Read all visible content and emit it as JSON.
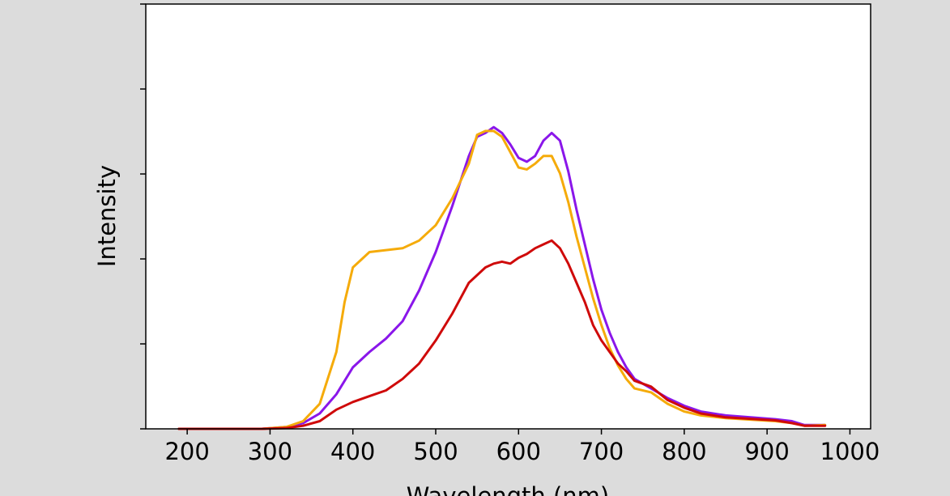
{
  "chart_data": {
    "type": "line",
    "title": "",
    "xlabel": "Wavelength (nm)",
    "ylabel": "Intensity",
    "xlim": [
      150,
      1025
    ],
    "ylim": [
      0,
      1.0
    ],
    "x_ticks": [
      200,
      300,
      400,
      500,
      600,
      700,
      800,
      900,
      1000
    ],
    "x_tick_labels": [
      "200",
      "300",
      "400",
      "500",
      "600",
      "700",
      "800",
      "900",
      "1000"
    ],
    "y_ticks": [
      0,
      0.2,
      0.4,
      0.6,
      0.8,
      1.0
    ],
    "y_tick_labels_shown": false,
    "grid": false,
    "legend": "none",
    "series": [
      {
        "color": "#8a16ea",
        "points": [
          [
            190,
            0
          ],
          [
            290,
            0
          ],
          [
            320,
            0.005
          ],
          [
            340,
            0.015
          ],
          [
            360,
            0.04
          ],
          [
            380,
            0.09
          ],
          [
            400,
            0.16
          ],
          [
            420,
            0.2
          ],
          [
            440,
            0.235
          ],
          [
            460,
            0.28
          ],
          [
            480,
            0.36
          ],
          [
            500,
            0.46
          ],
          [
            520,
            0.58
          ],
          [
            540,
            0.71
          ],
          [
            550,
            0.76
          ],
          [
            560,
            0.77
          ],
          [
            570,
            0.785
          ],
          [
            580,
            0.77
          ],
          [
            590,
            0.74
          ],
          [
            600,
            0.705
          ],
          [
            610,
            0.695
          ],
          [
            620,
            0.71
          ],
          [
            630,
            0.75
          ],
          [
            640,
            0.77
          ],
          [
            650,
            0.75
          ],
          [
            660,
            0.67
          ],
          [
            670,
            0.57
          ],
          [
            680,
            0.48
          ],
          [
            690,
            0.39
          ],
          [
            700,
            0.31
          ],
          [
            710,
            0.25
          ],
          [
            720,
            0.2
          ],
          [
            730,
            0.16
          ],
          [
            740,
            0.13
          ],
          [
            760,
            0.105
          ],
          [
            780,
            0.08
          ],
          [
            800,
            0.06
          ],
          [
            820,
            0.045
          ],
          [
            850,
            0.035
          ],
          [
            880,
            0.03
          ],
          [
            910,
            0.025
          ],
          [
            930,
            0.02
          ],
          [
            945,
            0.01
          ],
          [
            970,
            0.01
          ]
        ]
      },
      {
        "color": "#f5ab0a",
        "points": [
          [
            190,
            0
          ],
          [
            290,
            0
          ],
          [
            320,
            0.005
          ],
          [
            340,
            0.02
          ],
          [
            360,
            0.065
          ],
          [
            380,
            0.2
          ],
          [
            390,
            0.33
          ],
          [
            400,
            0.42
          ],
          [
            420,
            0.46
          ],
          [
            440,
            0.465
          ],
          [
            460,
            0.47
          ],
          [
            480,
            0.49
          ],
          [
            500,
            0.53
          ],
          [
            520,
            0.6
          ],
          [
            540,
            0.69
          ],
          [
            550,
            0.765
          ],
          [
            560,
            0.775
          ],
          [
            570,
            0.775
          ],
          [
            580,
            0.76
          ],
          [
            590,
            0.72
          ],
          [
            600,
            0.68
          ],
          [
            610,
            0.675
          ],
          [
            620,
            0.69
          ],
          [
            630,
            0.71
          ],
          [
            640,
            0.71
          ],
          [
            650,
            0.665
          ],
          [
            660,
            0.59
          ],
          [
            670,
            0.5
          ],
          [
            680,
            0.42
          ],
          [
            690,
            0.34
          ],
          [
            700,
            0.27
          ],
          [
            710,
            0.21
          ],
          [
            720,
            0.165
          ],
          [
            730,
            0.13
          ],
          [
            740,
            0.105
          ],
          [
            760,
            0.095
          ],
          [
            780,
            0.065
          ],
          [
            800,
            0.045
          ],
          [
            820,
            0.035
          ],
          [
            850,
            0.028
          ],
          [
            880,
            0.024
          ],
          [
            910,
            0.02
          ],
          [
            930,
            0.015
          ],
          [
            945,
            0.008
          ],
          [
            970,
            0.01
          ]
        ]
      },
      {
        "color": "#cf0a0a",
        "points": [
          [
            190,
            0
          ],
          [
            290,
            0
          ],
          [
            320,
            0.002
          ],
          [
            340,
            0.008
          ],
          [
            360,
            0.02
          ],
          [
            380,
            0.05
          ],
          [
            400,
            0.07
          ],
          [
            420,
            0.085
          ],
          [
            440,
            0.1
          ],
          [
            460,
            0.13
          ],
          [
            480,
            0.17
          ],
          [
            500,
            0.23
          ],
          [
            520,
            0.3
          ],
          [
            540,
            0.38
          ],
          [
            560,
            0.42
          ],
          [
            570,
            0.43
          ],
          [
            580,
            0.435
          ],
          [
            590,
            0.43
          ],
          [
            600,
            0.445
          ],
          [
            610,
            0.455
          ],
          [
            620,
            0.47
          ],
          [
            630,
            0.48
          ],
          [
            640,
            0.49
          ],
          [
            650,
            0.47
          ],
          [
            660,
            0.43
          ],
          [
            670,
            0.38
          ],
          [
            680,
            0.33
          ],
          [
            690,
            0.27
          ],
          [
            700,
            0.23
          ],
          [
            710,
            0.2
          ],
          [
            720,
            0.17
          ],
          [
            730,
            0.15
          ],
          [
            740,
            0.125
          ],
          [
            760,
            0.11
          ],
          [
            780,
            0.075
          ],
          [
            800,
            0.055
          ],
          [
            820,
            0.04
          ],
          [
            850,
            0.03
          ],
          [
            880,
            0.026
          ],
          [
            910,
            0.022
          ],
          [
            930,
            0.015
          ],
          [
            945,
            0.008
          ],
          [
            970,
            0.008
          ]
        ]
      }
    ]
  }
}
